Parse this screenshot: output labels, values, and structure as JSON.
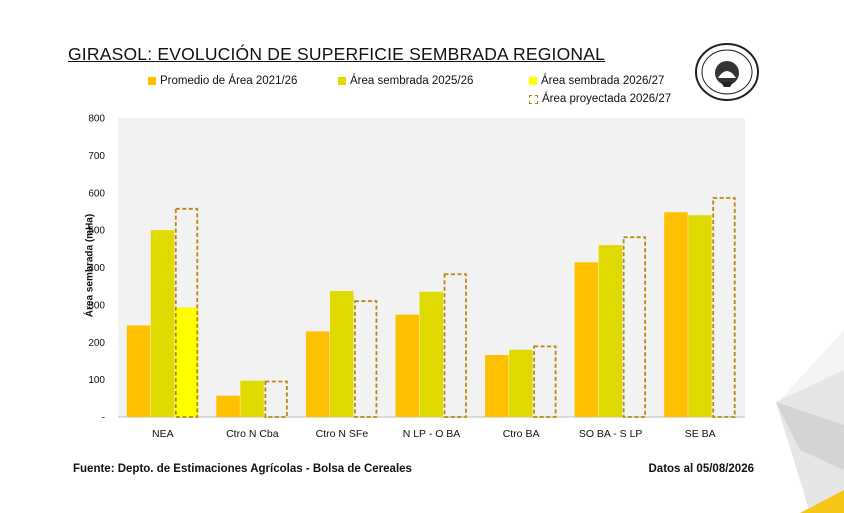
{
  "chart_data": {
    "type": "bar",
    "title": "GIRASOL: EVOLUCIÓN DE SUPERFICIE SEMBRADA REGIONAL",
    "ylabel": "Área sembrada (mHa)",
    "xlabel": "",
    "ylim": [
      0,
      800
    ],
    "yticks": [
      "-",
      "100",
      "200",
      "300",
      "400",
      "500",
      "600",
      "700",
      "800"
    ],
    "categories": [
      "NEA",
      "Ctro N Cba",
      "Ctro N SFe",
      "N LP - O BA",
      "Ctro BA",
      "SO BA - S LP",
      "SE BA"
    ],
    "series": [
      {
        "name": "Promedio de Área 2021/26",
        "color": "#FFC000",
        "style": "solid",
        "values": [
          245,
          57,
          229,
          274,
          166,
          414,
          548
        ]
      },
      {
        "name": "Área sembrada 2025/26",
        "color": "#E0DA00",
        "style": "solid",
        "values": [
          500,
          97,
          337,
          335,
          180,
          460,
          540
        ]
      },
      {
        "name": "Área sembrada 2026/27",
        "color": "#FFFF00",
        "style": "solid",
        "values": [
          293,
          0,
          0,
          0,
          0,
          0,
          0
        ]
      },
      {
        "name": "Área proyectada 2026/27",
        "color": "#B8860B",
        "style": "dashed",
        "values": [
          557,
          95,
          310,
          382,
          189,
          481,
          586
        ]
      }
    ],
    "grid": false,
    "legend_position": "top"
  },
  "footer": {
    "source": "Fuente: Depto. de Estimaciones Agrícolas - Bolsa de Cereales",
    "date": "Datos al 05/08/2026"
  },
  "logo": {
    "text": "Bolsa de Cereales",
    "icon": "bolsa-de-cereales-seal-icon"
  },
  "colors": {
    "plot_background": "#F2F2F2",
    "axis": "#BFBFBF"
  }
}
